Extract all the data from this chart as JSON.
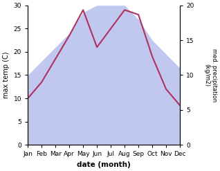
{
  "months": [
    "Jan",
    "Feb",
    "Mar",
    "Apr",
    "May",
    "Jun",
    "Jul",
    "Aug",
    "Sep",
    "Oct",
    "Nov",
    "Dec"
  ],
  "temp_max": [
    10,
    13.5,
    18.5,
    23.5,
    29,
    21,
    25,
    29,
    28,
    19,
    12,
    8.5
  ],
  "precipitation": [
    10,
    12,
    14,
    16,
    19,
    20,
    20,
    20,
    18,
    15,
    13,
    11
  ],
  "temp_color": "#b03060",
  "precip_color": "#c0c8f0",
  "ylabel_left": "max temp (C)",
  "ylabel_right": "med. precipitation\n(kg/m2)",
  "xlabel": "date (month)",
  "ylim_left": [
    0,
    30
  ],
  "ylim_right": [
    0,
    20
  ],
  "right_ticks": [
    0,
    5,
    10,
    15,
    20
  ],
  "left_ticks": [
    0,
    5,
    10,
    15,
    20,
    25,
    30
  ],
  "bg_color": "#ffffff",
  "fig_width": 3.18,
  "fig_height": 2.47,
  "dpi": 100
}
